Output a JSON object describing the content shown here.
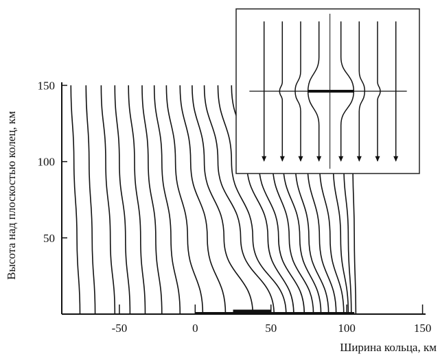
{
  "chart_data": {
    "type": "line",
    "xlabel": "Ширина кольца, км",
    "ylabel": "Высота над плоскостью колец, км",
    "xlim": [
      -88,
      152
    ],
    "ylim": [
      0,
      152
    ],
    "x_ticks": [
      -50,
      0,
      50,
      100,
      150
    ],
    "y_ticks": [
      50,
      100,
      150
    ],
    "x_tick_labels": [
      "-50",
      "0",
      "50",
      "100",
      "150"
    ],
    "y_tick_labels": [
      "50",
      "100",
      "150"
    ],
    "grid": false,
    "legend": "none",
    "line_color": "#111111",
    "ring_band": {
      "x": [
        0,
        105
      ]
    },
    "ring_thick_segment": {
      "x": [
        25,
        50
      ]
    },
    "series": [
      {
        "points": [
          [
            -82,
            150
          ],
          [
            -80,
            100
          ],
          [
            -78,
            50
          ],
          [
            -76,
            0
          ]
        ]
      },
      {
        "points": [
          [
            -72,
            150
          ],
          [
            -70,
            100
          ],
          [
            -68,
            50
          ],
          [
            -66,
            0
          ]
        ]
      },
      {
        "points": [
          [
            -62,
            150
          ],
          [
            -59,
            100
          ],
          [
            -56,
            50
          ],
          [
            -53,
            0
          ]
        ]
      },
      {
        "points": [
          [
            -53,
            150
          ],
          [
            -50,
            100
          ],
          [
            -46,
            50
          ],
          [
            -43,
            0
          ]
        ]
      },
      {
        "points": [
          [
            -44,
            150
          ],
          [
            -40,
            100
          ],
          [
            -36,
            50
          ],
          [
            -33,
            0
          ]
        ]
      },
      {
        "points": [
          [
            -35,
            150
          ],
          [
            -31,
            100
          ],
          [
            -26,
            50
          ],
          [
            -22,
            0
          ]
        ]
      },
      {
        "points": [
          [
            -27,
            150
          ],
          [
            -22,
            100
          ],
          [
            -16,
            50
          ],
          [
            -10,
            0
          ]
        ]
      },
      {
        "points": [
          [
            -19,
            150
          ],
          [
            -13,
            100
          ],
          [
            -5,
            50
          ],
          [
            5,
            0
          ]
        ]
      },
      {
        "points": [
          [
            -10,
            150
          ],
          [
            -3,
            100
          ],
          [
            8,
            50
          ],
          [
            20,
            0
          ]
        ]
      },
      {
        "points": [
          [
            -2,
            150
          ],
          [
            6,
            100
          ],
          [
            19,
            50
          ],
          [
            38,
            0
          ]
        ]
      },
      {
        "points": [
          [
            6,
            150
          ],
          [
            15,
            100
          ],
          [
            30,
            50
          ],
          [
            52,
            0
          ]
        ]
      },
      {
        "points": [
          [
            15,
            150
          ],
          [
            24,
            100
          ],
          [
            38,
            50
          ],
          [
            60,
            0
          ]
        ]
      },
      {
        "points": [
          [
            24,
            150
          ],
          [
            34,
            100
          ],
          [
            48,
            50
          ],
          [
            65,
            0
          ]
        ]
      },
      {
        "points": [
          [
            33,
            150
          ],
          [
            42,
            100
          ],
          [
            55,
            50
          ],
          [
            72,
            0
          ]
        ]
      },
      {
        "points": [
          [
            42,
            150
          ],
          [
            51,
            100
          ],
          [
            62,
            50
          ],
          [
            78,
            0
          ]
        ]
      },
      {
        "points": [
          [
            51,
            150
          ],
          [
            58,
            100
          ],
          [
            69,
            50
          ],
          [
            83,
            0
          ]
        ]
      },
      {
        "points": [
          [
            60,
            150
          ],
          [
            66,
            100
          ],
          [
            75,
            50
          ],
          [
            88,
            0
          ]
        ]
      },
      {
        "points": [
          [
            68,
            150
          ],
          [
            74,
            100
          ],
          [
            82,
            50
          ],
          [
            93,
            0
          ]
        ]
      },
      {
        "points": [
          [
            77,
            150
          ],
          [
            82,
            100
          ],
          [
            89,
            50
          ],
          [
            98,
            0
          ]
        ]
      },
      {
        "points": [
          [
            86,
            150
          ],
          [
            91,
            100
          ],
          [
            96,
            50
          ],
          [
            101,
            0
          ]
        ]
      },
      {
        "points": [
          [
            95,
            150
          ],
          [
            98,
            100
          ],
          [
            101,
            50
          ],
          [
            103,
            0
          ]
        ]
      },
      {
        "points": [
          [
            103,
            150
          ],
          [
            104,
            100
          ],
          [
            105,
            50
          ],
          [
            106,
            0
          ]
        ]
      }
    ],
    "inset": {
      "type": "line",
      "xlim": [
        0,
        9
      ],
      "ylim": [
        0,
        10
      ],
      "lines": [
        {
          "side": "left",
          "points": [
            [
              1,
              9.5
            ],
            [
              1,
              5.3
            ],
            [
              1,
              4.7
            ],
            [
              1,
              0.5
            ]
          ]
        },
        {
          "side": "left",
          "points": [
            [
              2,
              9.5
            ],
            [
              2,
              5.6
            ],
            [
              1.85,
              5
            ],
            [
              2,
              4.4
            ],
            [
              2,
              0.5
            ]
          ]
        },
        {
          "side": "left",
          "points": [
            [
              3,
              9.5
            ],
            [
              3,
              6.3
            ],
            [
              2.7,
              5
            ],
            [
              3,
              3.7
            ],
            [
              3,
              0.5
            ]
          ]
        },
        {
          "side": "left",
          "points": [
            [
              4,
              9.5
            ],
            [
              4,
              7.2
            ],
            [
              3.4,
              5
            ],
            [
              4,
              2.8
            ],
            [
              4,
              0.5
            ]
          ]
        },
        {
          "side": "right",
          "points": [
            [
              5.2,
              9.5
            ],
            [
              5.2,
              7.2
            ],
            [
              5.9,
              5
            ],
            [
              5.2,
              2.8
            ],
            [
              5.2,
              0.5
            ]
          ]
        },
        {
          "side": "right",
          "points": [
            [
              6.2,
              9.5
            ],
            [
              6.2,
              6.3
            ],
            [
              6.5,
              5
            ],
            [
              6.2,
              3.7
            ],
            [
              6.2,
              0.5
            ]
          ]
        },
        {
          "side": "right",
          "points": [
            [
              7.2,
              9.5
            ],
            [
              7.2,
              5.6
            ],
            [
              7.35,
              5
            ],
            [
              7.2,
              4.4
            ],
            [
              7.2,
              0.5
            ]
          ]
        },
        {
          "side": "right",
          "points": [
            [
              8.2,
              9.5
            ],
            [
              8.2,
              5.3
            ],
            [
              8.2,
              4.7
            ],
            [
              8.2,
              0.5
            ]
          ]
        }
      ],
      "center_line_x": 4.6,
      "ring_line_y": 5,
      "ring_thick": [
        3.4,
        5.9
      ]
    }
  }
}
